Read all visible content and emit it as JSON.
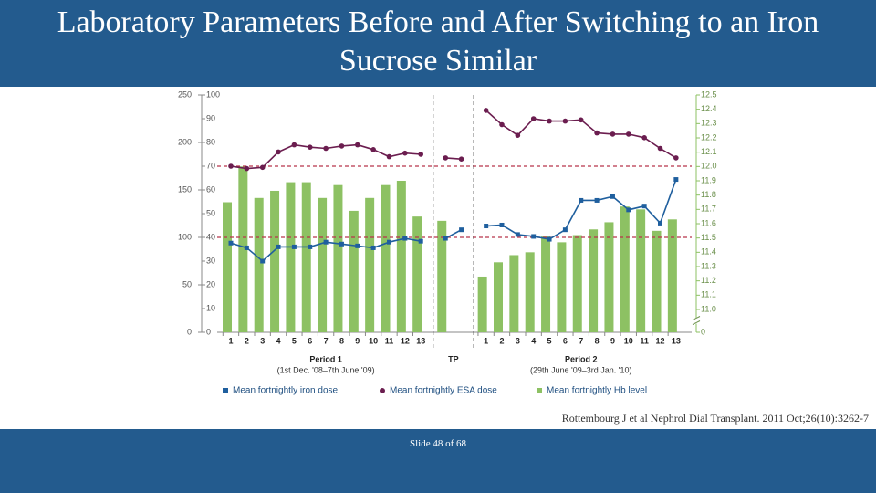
{
  "slide": {
    "title": "Laboratory Parameters Before and After Switching to an Iron Sucrose Similar",
    "citation": "Rottembourg J et al Nephrol Dial Transplant. 2011 Oct;26(10):3262-7",
    "footer": "Slide 48 of 68"
  },
  "chart_data": {
    "type": "bar-line",
    "groups": [
      {
        "label": "Period 1",
        "sublabel": "(1st Dec. '08–7th June '09)",
        "categories": [
          "1",
          "2",
          "3",
          "4",
          "5",
          "6",
          "7",
          "8",
          "9",
          "10",
          "11",
          "12",
          "13"
        ]
      },
      {
        "label": "TP",
        "categories": [
          null,
          null
        ]
      },
      {
        "label": "Period 2",
        "sublabel": "(29th June '09–3rd Jan. '10)",
        "categories": [
          "1",
          "2",
          "3",
          "4",
          "5",
          "6",
          "7",
          "8",
          "9",
          "10",
          "11",
          "12",
          "13"
        ]
      }
    ],
    "series": [
      {
        "name": "Mean fortnightly iron dose",
        "color": "#1f5f9e",
        "type": "line",
        "marker": "square",
        "axis": "y",
        "values": [
          94,
          89,
          75,
          90,
          90,
          90,
          95,
          93,
          91,
          89,
          95,
          99,
          96,
          99,
          108,
          112,
          113,
          103,
          101,
          98,
          108,
          139,
          139,
          143,
          129,
          133,
          115,
          161
        ]
      },
      {
        "name": "Mean fortnightly ESA dose",
        "color": "#6b1d4f",
        "type": "line",
        "marker": "circle",
        "axis": "y2",
        "values": [
          70,
          69,
          69.5,
          76,
          79,
          78,
          77.5,
          78.5,
          79,
          77,
          74,
          75.5,
          75,
          73.5,
          73,
          93.5,
          87.5,
          83,
          90,
          89,
          89,
          89.5,
          84,
          83.5,
          83.5,
          82,
          77.5,
          73.5
        ]
      },
      {
        "name": "Mean fortnightly Hb level",
        "color": "#8dc163",
        "type": "bar",
        "axis": "y3",
        "values": [
          11.75,
          12.0,
          11.78,
          11.83,
          11.89,
          11.89,
          11.78,
          11.87,
          11.69,
          11.78,
          11.87,
          11.9,
          11.65,
          11.62,
          null,
          11.23,
          11.33,
          11.38,
          11.4,
          11.51,
          11.47,
          11.52,
          11.56,
          11.61,
          11.72,
          11.7,
          11.55,
          11.63
        ]
      }
    ],
    "ylim": [
      0,
      250
    ],
    "yticks": [
      0,
      50,
      100,
      150,
      200,
      250
    ],
    "y2lim": [
      0,
      100
    ],
    "y2ticks": [
      0,
      10,
      20,
      30,
      40,
      50,
      60,
      70,
      80,
      90,
      100
    ],
    "y3lim": [
      11.0,
      12.5
    ],
    "y3_axis_break": true,
    "y3ticks": [
      0,
      {
        "value": 11.0,
        "label": "11.0"
      },
      11.1,
      11.2,
      11.3,
      11.4,
      11.5,
      11.6,
      11.7,
      11.8,
      11.9,
      {
        "value": 12.0,
        "label": "12.0"
      },
      12.1,
      12.2,
      12.3,
      12.4,
      12.5
    ],
    "reference_lines": [
      {
        "axis": "y2",
        "value": 70,
        "color": "#b8344a"
      },
      {
        "axis": "y",
        "value": 100,
        "color": "#b8344a"
      }
    ]
  }
}
